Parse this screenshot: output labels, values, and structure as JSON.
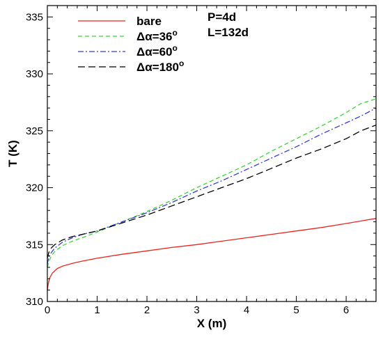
{
  "chart_data": {
    "type": "line",
    "title": "",
    "xlabel": "X (m)",
    "ylabel": "T (K)",
    "xlim": [
      0,
      6.6
    ],
    "ylim": [
      310,
      336
    ],
    "xticks": [
      0,
      1,
      2,
      3,
      4,
      5,
      6
    ],
    "yticks": [
      310,
      315,
      320,
      325,
      330,
      335
    ],
    "grid": false,
    "legend_position": "top-left",
    "annotations": [
      "P=4d",
      "L=132d"
    ],
    "series": [
      {
        "name": "bare",
        "label_prefix": "bare",
        "label_sup": "",
        "color": "#e8251f",
        "dash": "",
        "x": [
          0.0,
          0.02,
          0.05,
          0.1,
          0.2,
          0.3,
          0.5,
          0.7,
          1.0,
          1.5,
          2.0,
          2.5,
          3.0,
          3.5,
          4.0,
          4.5,
          5.0,
          5.5,
          6.0,
          6.6
        ],
        "y": [
          311.0,
          311.6,
          312.1,
          312.5,
          312.9,
          313.1,
          313.35,
          313.55,
          313.8,
          314.15,
          314.45,
          314.75,
          315.0,
          315.3,
          315.6,
          315.9,
          316.2,
          316.5,
          316.85,
          317.3
        ]
      },
      {
        "name": "Δα=36°",
        "label_prefix": "Δα=36",
        "label_sup": "o",
        "color": "#3bd33b",
        "dash": "6 4",
        "x": [
          0.0,
          0.03,
          0.08,
          0.15,
          0.3,
          0.5,
          0.7,
          1.0,
          1.5,
          2.0,
          2.5,
          3.0,
          3.5,
          4.0,
          4.5,
          5.0,
          5.5,
          6.0,
          6.3,
          6.6
        ],
        "y": [
          313.0,
          313.5,
          314.0,
          314.4,
          314.9,
          315.3,
          315.6,
          316.1,
          317.0,
          317.9,
          318.9,
          320.0,
          321.0,
          322.0,
          323.2,
          324.3,
          325.4,
          326.6,
          327.4,
          327.8
        ]
      },
      {
        "name": "Δα=60°",
        "label_prefix": "Δα=60",
        "label_sup": "o",
        "color": "#3b3bd8",
        "dash": "8 3 2 3",
        "x": [
          0.0,
          0.03,
          0.08,
          0.15,
          0.3,
          0.5,
          0.7,
          1.0,
          1.5,
          2.0,
          2.5,
          3.0,
          3.5,
          4.0,
          4.5,
          5.0,
          5.5,
          6.0,
          6.3,
          6.6
        ],
        "y": [
          313.3,
          313.9,
          314.3,
          314.7,
          315.2,
          315.6,
          315.9,
          316.2,
          317.0,
          317.8,
          318.7,
          319.7,
          320.6,
          321.6,
          322.6,
          323.6,
          324.7,
          325.7,
          326.3,
          327.0
        ]
      },
      {
        "name": "Δα=180°",
        "label_prefix": "Δα=180",
        "label_sup": "o",
        "color": "#000000",
        "dash": "10 5",
        "x": [
          0.0,
          0.03,
          0.08,
          0.15,
          0.3,
          0.5,
          0.7,
          1.0,
          1.5,
          2.0,
          2.5,
          3.0,
          3.5,
          4.0,
          4.5,
          5.0,
          5.5,
          6.0,
          6.3,
          6.6
        ],
        "y": [
          313.8,
          314.3,
          314.7,
          315.0,
          315.4,
          315.7,
          315.9,
          316.2,
          316.9,
          317.6,
          318.4,
          319.2,
          320.0,
          320.8,
          321.7,
          322.6,
          323.4,
          324.3,
          325.0,
          325.5
        ]
      }
    ]
  }
}
